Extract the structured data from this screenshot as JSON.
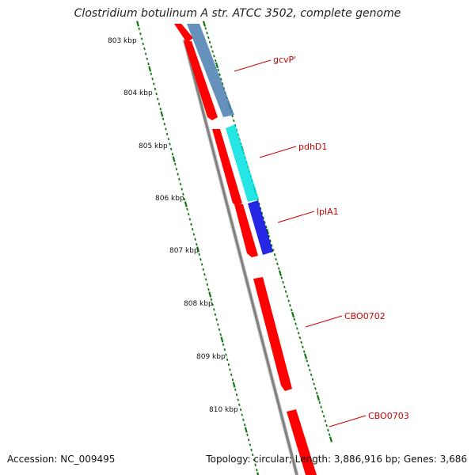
{
  "title": "Clostridium botulinum A str. ATCC 3502, complete genome",
  "footer": {
    "accession": "Accession: NC_009495",
    "summary": "Topology: circular; Length: 3,886,916 bp; Genes: 3,686"
  },
  "ruler": [
    {
      "label": "803 kbp"
    },
    {
      "label": "804 kbp"
    },
    {
      "label": "805 kbp"
    },
    {
      "label": "806 kbp"
    },
    {
      "label": "807 kbp"
    },
    {
      "label": "808 kbp"
    },
    {
      "label": "809 kbp"
    },
    {
      "label": "810 kbp"
    }
  ],
  "genes": [
    {
      "label": "gcvP'"
    },
    {
      "label": "pdhD1"
    },
    {
      "label": "lplA1"
    },
    {
      "label": "CBO0702"
    },
    {
      "label": "CBO0703"
    }
  ],
  "colors": {
    "cds": "#ff0000",
    "gcvP": "#4a7fb0",
    "pdhD1": "#00e0e0",
    "lplA1": "#0000e0",
    "backbone": "#888888",
    "ticks": "#117711",
    "label": "#cc0000"
  }
}
